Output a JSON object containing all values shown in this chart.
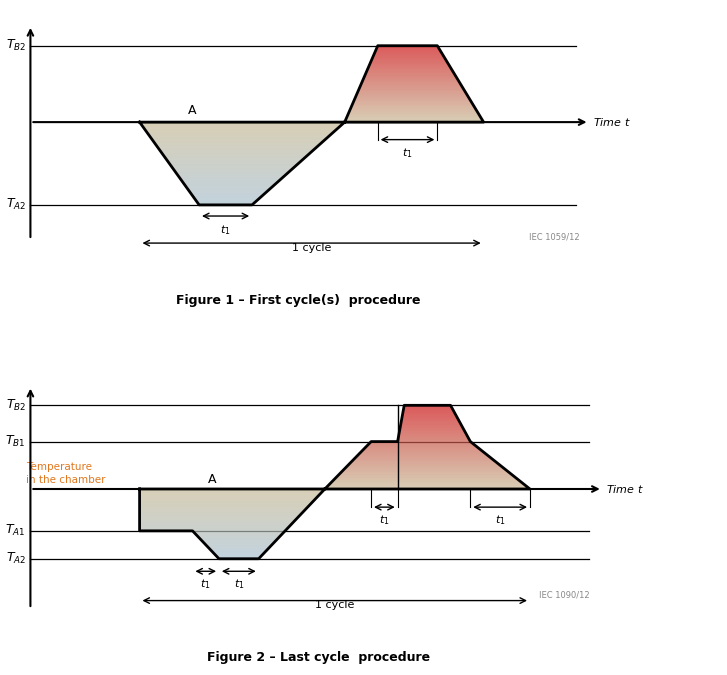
{
  "fig_width": 7.27,
  "fig_height": 6.75,
  "title1": "Figure 1 – First cycle(s)  procedure",
  "title2": "Figure 2 – Last cycle  procedure",
  "iec_label1": "IEC 1059/12",
  "iec_label2": "IEC 1090/12",
  "orange_color": "#e07820",
  "cold_top": "#c8ba96",
  "cold_bot": "#a8c0d0",
  "hot_top": "#cc1010",
  "hot_mid": "#c8ba96",
  "line_color": "#000000"
}
